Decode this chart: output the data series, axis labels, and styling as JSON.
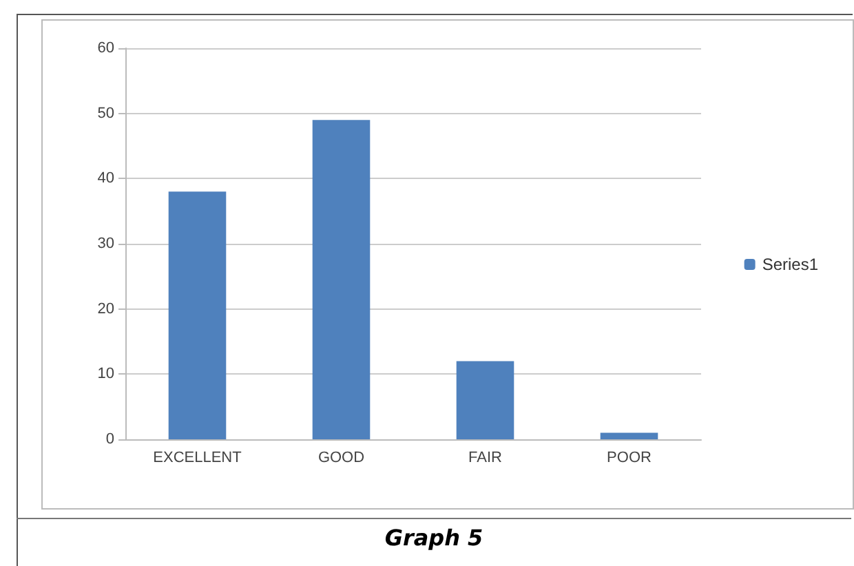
{
  "chart_data": {
    "type": "bar",
    "categories": [
      "EXCELLENT",
      "GOOD",
      "FAIR",
      "POOR"
    ],
    "series": [
      {
        "name": "Series1",
        "color": "#4f81bd",
        "values": [
          38,
          49,
          12,
          1
        ]
      }
    ],
    "ylim": [
      0,
      60
    ],
    "yticks": [
      0,
      10,
      20,
      30,
      40,
      50,
      60
    ],
    "grid": "y",
    "legend": "right",
    "annotations": [
      "Graph 5"
    ]
  }
}
